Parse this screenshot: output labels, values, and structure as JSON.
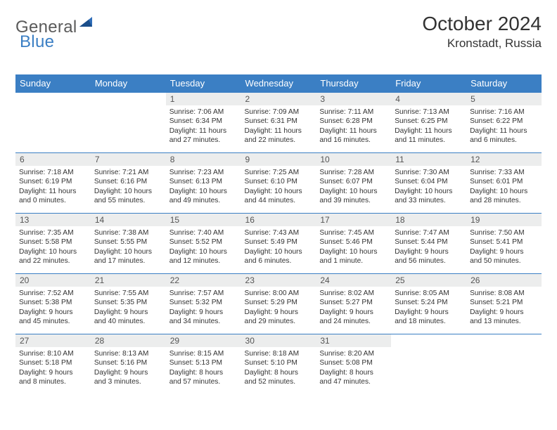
{
  "logo": {
    "part1": "General",
    "part2": "Blue"
  },
  "title": "October 2024",
  "location": "Kronstadt, Russia",
  "colors": {
    "header_bg": "#3b7fc4",
    "header_text": "#ffffff",
    "daynum_bg": "#eceded",
    "border": "#3b7fc4",
    "text": "#333333",
    "logo_gray": "#5a5a5a",
    "logo_blue": "#3b7fc4",
    "page_bg": "#ffffff"
  },
  "typography": {
    "title_fontsize": 28,
    "location_fontsize": 17,
    "dayhead_fontsize": 13,
    "daynum_fontsize": 12,
    "body_fontsize": 10.2,
    "font_family": "Arial"
  },
  "day_headers": [
    "Sunday",
    "Monday",
    "Tuesday",
    "Wednesday",
    "Thursday",
    "Friday",
    "Saturday"
  ],
  "weeks": [
    [
      {
        "n": "",
        "lines": []
      },
      {
        "n": "",
        "lines": []
      },
      {
        "n": "1",
        "lines": [
          "Sunrise: 7:06 AM",
          "Sunset: 6:34 PM",
          "Daylight: 11 hours",
          "and 27 minutes."
        ]
      },
      {
        "n": "2",
        "lines": [
          "Sunrise: 7:09 AM",
          "Sunset: 6:31 PM",
          "Daylight: 11 hours",
          "and 22 minutes."
        ]
      },
      {
        "n": "3",
        "lines": [
          "Sunrise: 7:11 AM",
          "Sunset: 6:28 PM",
          "Daylight: 11 hours",
          "and 16 minutes."
        ]
      },
      {
        "n": "4",
        "lines": [
          "Sunrise: 7:13 AM",
          "Sunset: 6:25 PM",
          "Daylight: 11 hours",
          "and 11 minutes."
        ]
      },
      {
        "n": "5",
        "lines": [
          "Sunrise: 7:16 AM",
          "Sunset: 6:22 PM",
          "Daylight: 11 hours",
          "and 6 minutes."
        ]
      }
    ],
    [
      {
        "n": "6",
        "lines": [
          "Sunrise: 7:18 AM",
          "Sunset: 6:19 PM",
          "Daylight: 11 hours",
          "and 0 minutes."
        ]
      },
      {
        "n": "7",
        "lines": [
          "Sunrise: 7:21 AM",
          "Sunset: 6:16 PM",
          "Daylight: 10 hours",
          "and 55 minutes."
        ]
      },
      {
        "n": "8",
        "lines": [
          "Sunrise: 7:23 AM",
          "Sunset: 6:13 PM",
          "Daylight: 10 hours",
          "and 49 minutes."
        ]
      },
      {
        "n": "9",
        "lines": [
          "Sunrise: 7:25 AM",
          "Sunset: 6:10 PM",
          "Daylight: 10 hours",
          "and 44 minutes."
        ]
      },
      {
        "n": "10",
        "lines": [
          "Sunrise: 7:28 AM",
          "Sunset: 6:07 PM",
          "Daylight: 10 hours",
          "and 39 minutes."
        ]
      },
      {
        "n": "11",
        "lines": [
          "Sunrise: 7:30 AM",
          "Sunset: 6:04 PM",
          "Daylight: 10 hours",
          "and 33 minutes."
        ]
      },
      {
        "n": "12",
        "lines": [
          "Sunrise: 7:33 AM",
          "Sunset: 6:01 PM",
          "Daylight: 10 hours",
          "and 28 minutes."
        ]
      }
    ],
    [
      {
        "n": "13",
        "lines": [
          "Sunrise: 7:35 AM",
          "Sunset: 5:58 PM",
          "Daylight: 10 hours",
          "and 22 minutes."
        ]
      },
      {
        "n": "14",
        "lines": [
          "Sunrise: 7:38 AM",
          "Sunset: 5:55 PM",
          "Daylight: 10 hours",
          "and 17 minutes."
        ]
      },
      {
        "n": "15",
        "lines": [
          "Sunrise: 7:40 AM",
          "Sunset: 5:52 PM",
          "Daylight: 10 hours",
          "and 12 minutes."
        ]
      },
      {
        "n": "16",
        "lines": [
          "Sunrise: 7:43 AM",
          "Sunset: 5:49 PM",
          "Daylight: 10 hours",
          "and 6 minutes."
        ]
      },
      {
        "n": "17",
        "lines": [
          "Sunrise: 7:45 AM",
          "Sunset: 5:46 PM",
          "Daylight: 10 hours",
          "and 1 minute."
        ]
      },
      {
        "n": "18",
        "lines": [
          "Sunrise: 7:47 AM",
          "Sunset: 5:44 PM",
          "Daylight: 9 hours",
          "and 56 minutes."
        ]
      },
      {
        "n": "19",
        "lines": [
          "Sunrise: 7:50 AM",
          "Sunset: 5:41 PM",
          "Daylight: 9 hours",
          "and 50 minutes."
        ]
      }
    ],
    [
      {
        "n": "20",
        "lines": [
          "Sunrise: 7:52 AM",
          "Sunset: 5:38 PM",
          "Daylight: 9 hours",
          "and 45 minutes."
        ]
      },
      {
        "n": "21",
        "lines": [
          "Sunrise: 7:55 AM",
          "Sunset: 5:35 PM",
          "Daylight: 9 hours",
          "and 40 minutes."
        ]
      },
      {
        "n": "22",
        "lines": [
          "Sunrise: 7:57 AM",
          "Sunset: 5:32 PM",
          "Daylight: 9 hours",
          "and 34 minutes."
        ]
      },
      {
        "n": "23",
        "lines": [
          "Sunrise: 8:00 AM",
          "Sunset: 5:29 PM",
          "Daylight: 9 hours",
          "and 29 minutes."
        ]
      },
      {
        "n": "24",
        "lines": [
          "Sunrise: 8:02 AM",
          "Sunset: 5:27 PM",
          "Daylight: 9 hours",
          "and 24 minutes."
        ]
      },
      {
        "n": "25",
        "lines": [
          "Sunrise: 8:05 AM",
          "Sunset: 5:24 PM",
          "Daylight: 9 hours",
          "and 18 minutes."
        ]
      },
      {
        "n": "26",
        "lines": [
          "Sunrise: 8:08 AM",
          "Sunset: 5:21 PM",
          "Daylight: 9 hours",
          "and 13 minutes."
        ]
      }
    ],
    [
      {
        "n": "27",
        "lines": [
          "Sunrise: 8:10 AM",
          "Sunset: 5:18 PM",
          "Daylight: 9 hours",
          "and 8 minutes."
        ]
      },
      {
        "n": "28",
        "lines": [
          "Sunrise: 8:13 AM",
          "Sunset: 5:16 PM",
          "Daylight: 9 hours",
          "and 3 minutes."
        ]
      },
      {
        "n": "29",
        "lines": [
          "Sunrise: 8:15 AM",
          "Sunset: 5:13 PM",
          "Daylight: 8 hours",
          "and 57 minutes."
        ]
      },
      {
        "n": "30",
        "lines": [
          "Sunrise: 8:18 AM",
          "Sunset: 5:10 PM",
          "Daylight: 8 hours",
          "and 52 minutes."
        ]
      },
      {
        "n": "31",
        "lines": [
          "Sunrise: 8:20 AM",
          "Sunset: 5:08 PM",
          "Daylight: 8 hours",
          "and 47 minutes."
        ]
      },
      {
        "n": "",
        "lines": []
      },
      {
        "n": "",
        "lines": []
      }
    ]
  ]
}
